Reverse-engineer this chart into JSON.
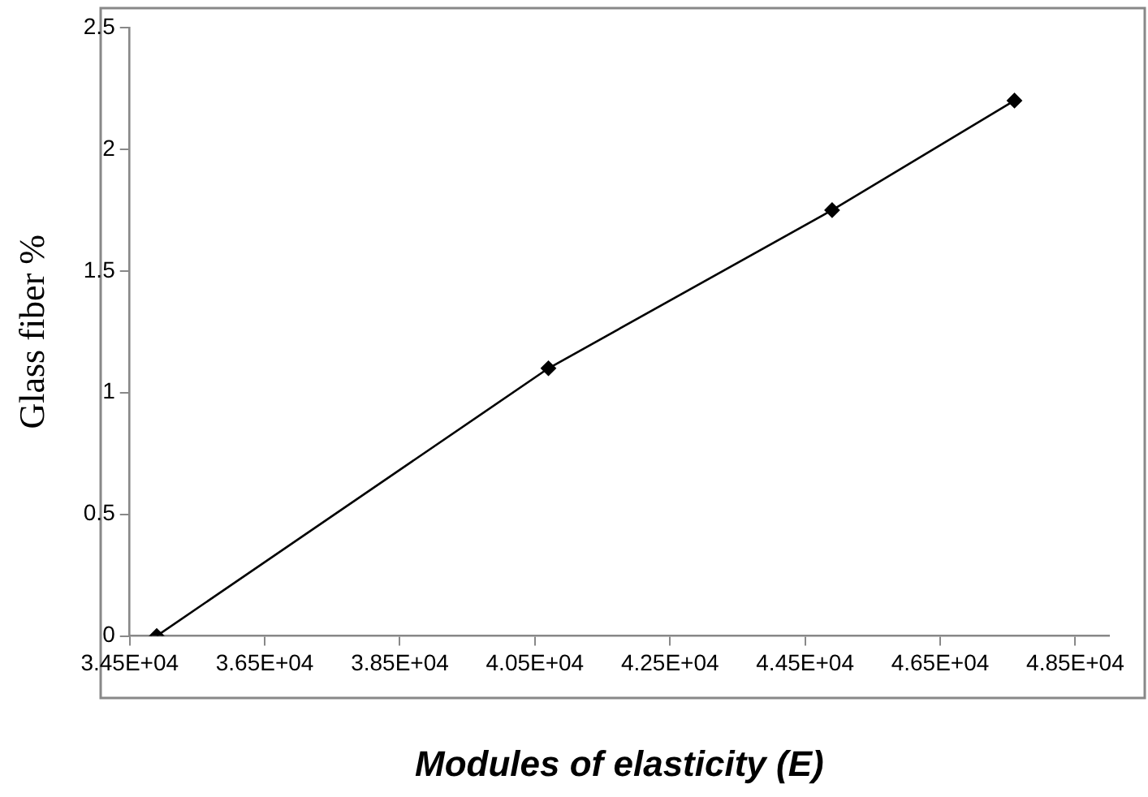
{
  "chart_data": {
    "type": "line",
    "xlabel": "Modules of elasticity (E)",
    "ylabel": "Glass fiber %",
    "x": [
      34900,
      40700,
      44900,
      47600
    ],
    "series": [
      {
        "color": "#000000",
        "values": [
          0,
          1.1,
          1.75,
          2.2
        ]
      }
    ],
    "xlim": [
      34500,
      49000
    ],
    "xticks": [
      {
        "value": 34500,
        "label": "3.45E+04"
      },
      {
        "value": 36500,
        "label": "3.65E+04"
      },
      {
        "value": 38500,
        "label": "3.85E+04"
      },
      {
        "value": 40500,
        "label": "4.05E+04"
      },
      {
        "value": 42500,
        "label": "4.25E+04"
      },
      {
        "value": 44500,
        "label": "4.45E+04"
      },
      {
        "value": 46500,
        "label": "4.65E+04"
      },
      {
        "value": 48500,
        "label": "4.85E+04"
      }
    ],
    "ylim": [
      0,
      2.5
    ],
    "yticks": [
      0,
      0.5,
      1,
      1.5,
      2,
      2.5
    ],
    "grid": false,
    "legend": false,
    "marker": "diamond",
    "line_style": "solid"
  }
}
